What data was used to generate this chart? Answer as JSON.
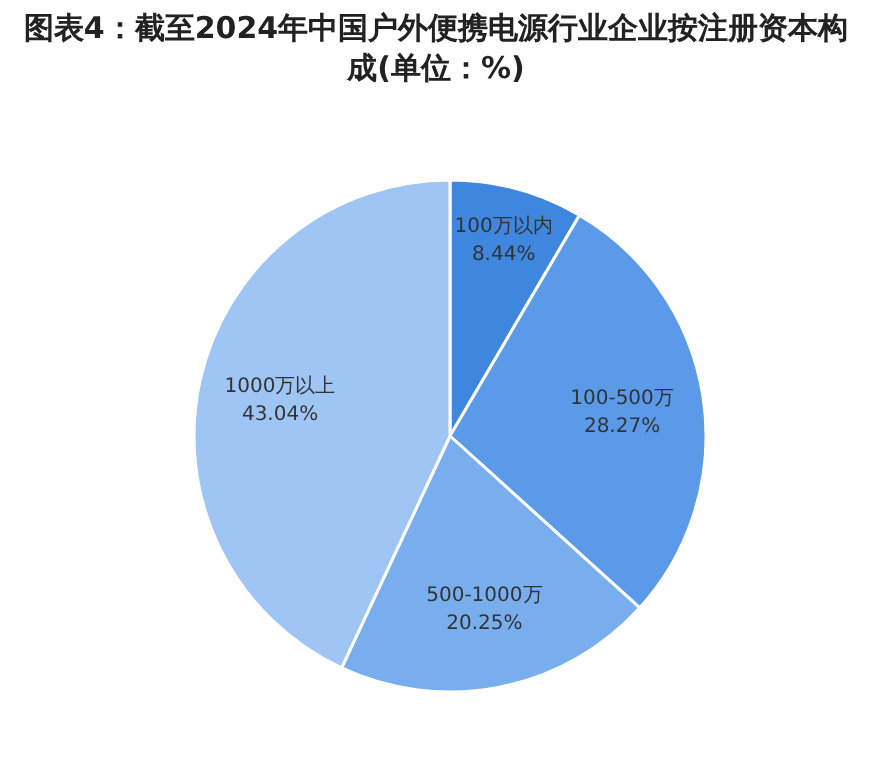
{
  "chart_data": {
    "type": "pie",
    "title": "图表4：截至2024年中国户外便携电源行业企业按注册资本构成(单位：%)",
    "categories": [
      "100万以内",
      "100-500万",
      "500-1000万",
      "1000万以上"
    ],
    "values": [
      8.44,
      28.27,
      20.25,
      43.04
    ],
    "colors": [
      "#3f87de",
      "#5a9ae8",
      "#79aeee",
      "#9fc5f4"
    ],
    "value_labels": [
      "8.44%",
      "28.27%",
      "20.25%",
      "43.04%"
    ]
  }
}
